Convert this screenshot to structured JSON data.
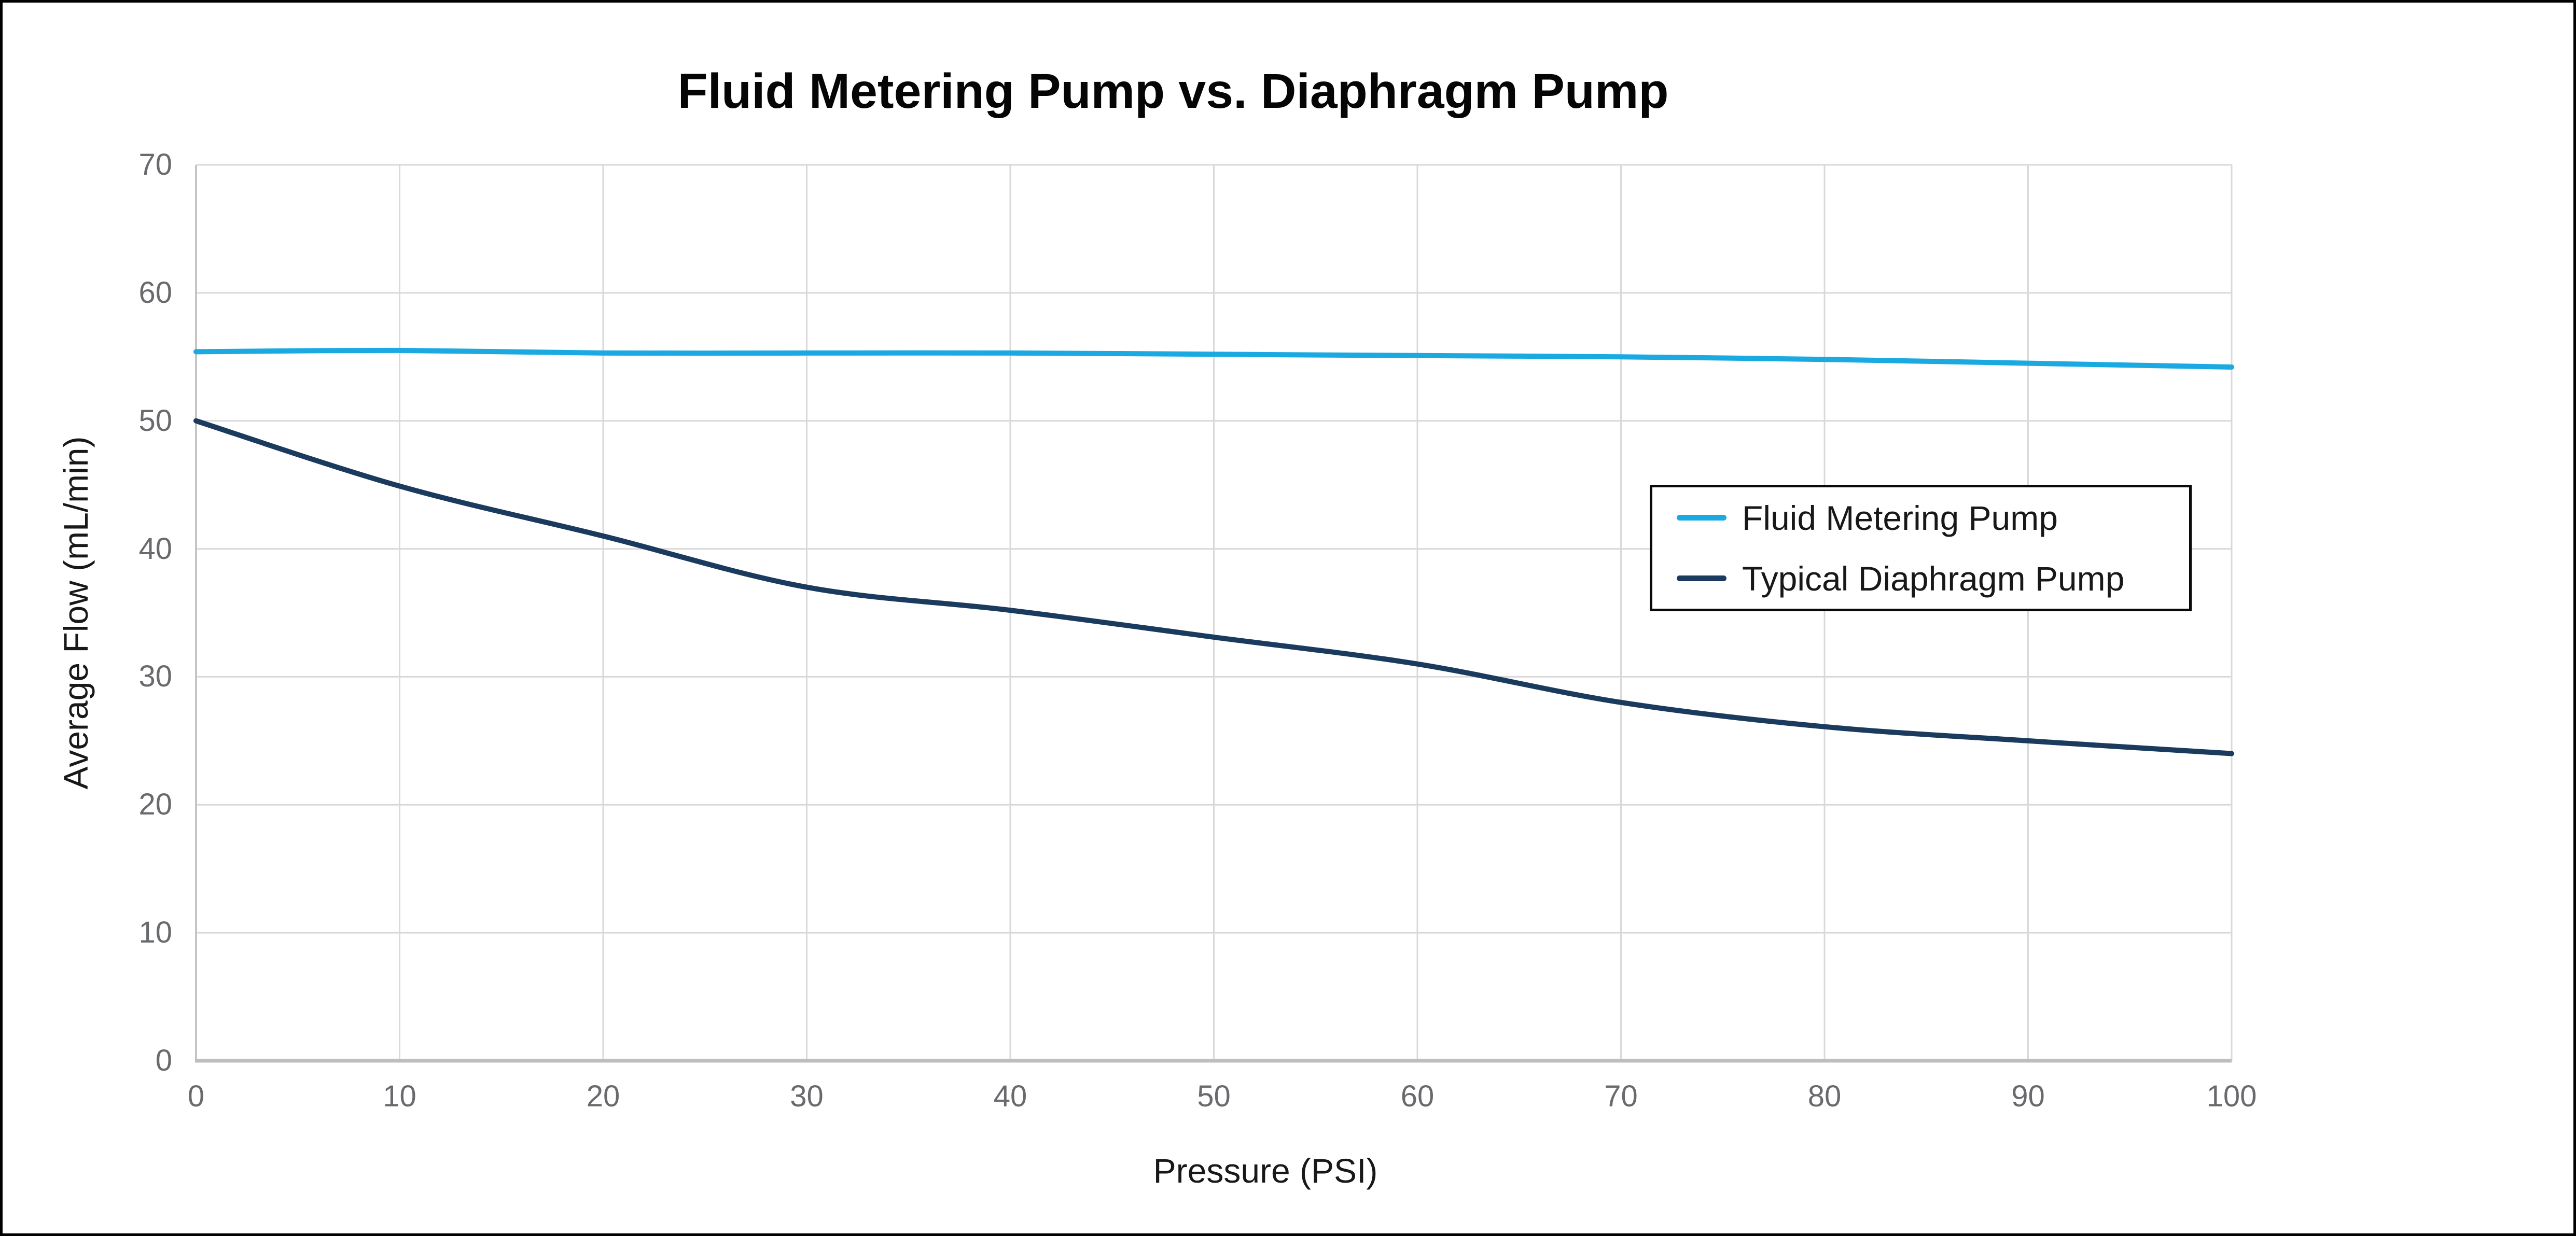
{
  "chart_data": {
    "type": "line",
    "title": "Fluid Metering Pump vs. Diaphragm Pump",
    "xlabel": "Pressure (PSI)",
    "ylabel": "Average Flow (mL/min)",
    "xlim": [
      0,
      100
    ],
    "ylim": [
      0,
      70
    ],
    "xticks": [
      0,
      10,
      20,
      30,
      40,
      50,
      60,
      70,
      80,
      90,
      100
    ],
    "yticks": [
      0,
      10,
      20,
      30,
      40,
      50,
      60,
      70
    ],
    "grid": true,
    "legend_position": "center-right-box",
    "x": [
      0,
      10,
      20,
      30,
      40,
      50,
      60,
      70,
      80,
      90,
      100
    ],
    "series": [
      {
        "name": "Fluid Metering Pump",
        "color": "#1BA9E1",
        "values": [
          55.4,
          55.5,
          55.3,
          55.3,
          55.3,
          55.2,
          55.1,
          55.0,
          54.8,
          54.5,
          54.2
        ]
      },
      {
        "name": "Typical Diaphragm Pump",
        "color": "#1B3B5E",
        "values": [
          50.0,
          44.9,
          41.0,
          37.0,
          35.2,
          33.1,
          31.0,
          28.0,
          26.1,
          25.0,
          24.0
        ]
      }
    ]
  },
  "colors": {
    "background": "#ffffff",
    "figure_border": "#000000",
    "grid_line": "#d9d9d9",
    "axis_left": "#c5c5c5",
    "axis_bottom": "#bcbec0",
    "tick_label": "#696a6d",
    "axis_label": "#181818",
    "title": "#050505",
    "legend_border": "#0a0a0a"
  }
}
